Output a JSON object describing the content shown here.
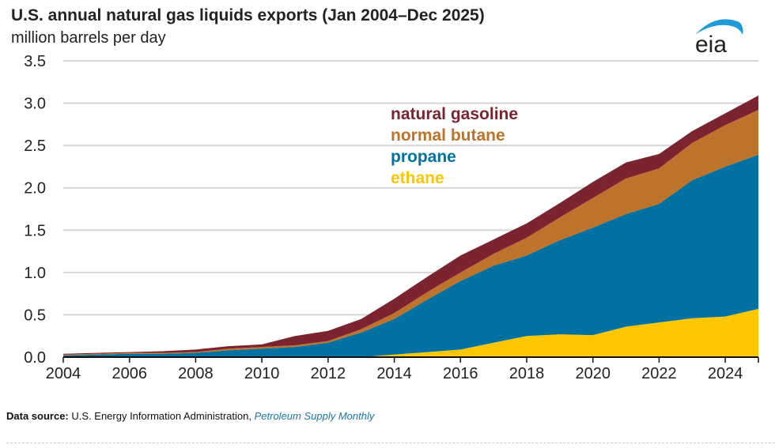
{
  "title": "U.S. annual natural gas liquids exports (Jan 2004–Dec 2025)",
  "subtitle": "million barrels per day",
  "source": {
    "label": "Data source:",
    "text": "U.S. Energy Information Administration,",
    "publication": "Petroleum Supply Monthly"
  },
  "logo": "eia",
  "chart_data": {
    "type": "area",
    "stacked": true,
    "title": "U.S. annual natural gas liquids exports (Jan 2004–Dec 2025)",
    "ylabel": "million barrels per day",
    "xlim": [
      2004,
      2025
    ],
    "ylim": [
      0,
      3.5
    ],
    "yticks": [
      "0.0",
      "0.5",
      "1.0",
      "1.5",
      "2.0",
      "2.5",
      "3.0",
      "3.5"
    ],
    "xticks": [
      "2004",
      "2006",
      "2008",
      "2010",
      "2012",
      "2014",
      "2016",
      "2018",
      "2020",
      "2022",
      "2024"
    ],
    "grid": "horizontal",
    "legend": "inline-top-center",
    "x": [
      2004,
      2005,
      2006,
      2007,
      2008,
      2009,
      2010,
      2011,
      2012,
      2013,
      2014,
      2015,
      2016,
      2017,
      2018,
      2019,
      2020,
      2021,
      2022,
      2023,
      2024,
      2025
    ],
    "series": [
      {
        "name": "ethane",
        "color": "#fec700",
        "values": [
          0,
          0,
          0,
          0,
          0,
          0,
          0,
          0,
          0,
          0,
          0.03,
          0.06,
          0.09,
          0.17,
          0.25,
          0.27,
          0.26,
          0.36,
          0.41,
          0.46,
          0.48,
          0.57
        ]
      },
      {
        "name": "propane",
        "color": "#0071a1",
        "values": [
          0.02,
          0.03,
          0.04,
          0.04,
          0.05,
          0.08,
          0.1,
          0.12,
          0.17,
          0.29,
          0.42,
          0.62,
          0.81,
          0.91,
          0.95,
          1.11,
          1.27,
          1.33,
          1.4,
          1.63,
          1.77,
          1.82
        ]
      },
      {
        "name": "normal butane",
        "color": "#bc732b",
        "values": [
          0.01,
          0.01,
          0.01,
          0.01,
          0.01,
          0.02,
          0.02,
          0.02,
          0.02,
          0.04,
          0.07,
          0.09,
          0.1,
          0.14,
          0.21,
          0.27,
          0.35,
          0.42,
          0.42,
          0.44,
          0.49,
          0.53
        ]
      },
      {
        "name": "natural gasoline",
        "color": "#7a242f",
        "values": [
          0.01,
          0.01,
          0.01,
          0.02,
          0.03,
          0.03,
          0.03,
          0.11,
          0.12,
          0.12,
          0.17,
          0.18,
          0.2,
          0.17,
          0.17,
          0.17,
          0.19,
          0.19,
          0.17,
          0.14,
          0.14,
          0.17
        ]
      }
    ]
  }
}
